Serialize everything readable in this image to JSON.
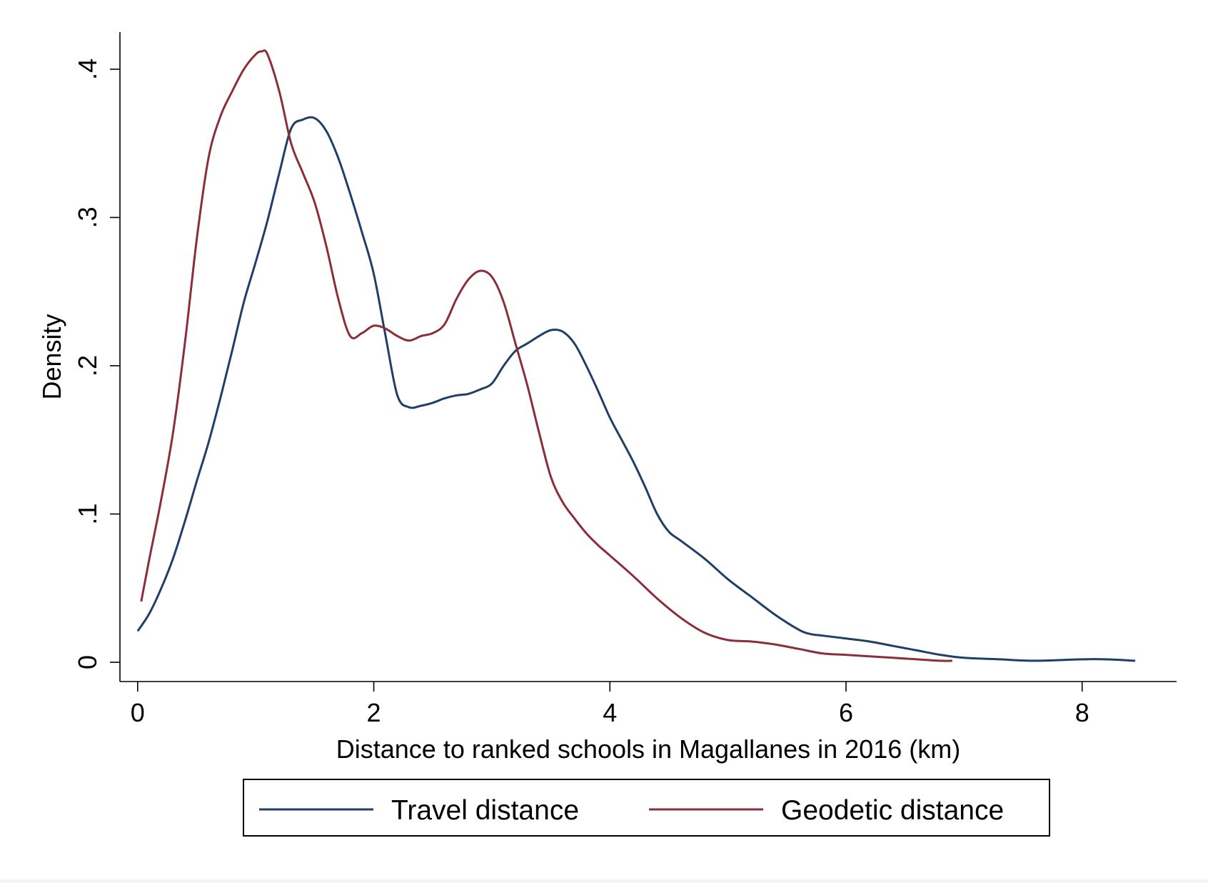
{
  "chart_data": {
    "type": "line",
    "title": "",
    "xlabel": "Distance to ranked schools in Magallanes in 2016 (km)",
    "ylabel": "Density",
    "xlim": [
      -0.15,
      8.8
    ],
    "ylim": [
      -0.013,
      0.425
    ],
    "x_ticks": [
      0,
      2,
      4,
      6,
      8
    ],
    "x_tick_labels": [
      "0",
      "2",
      "4",
      "6",
      "8"
    ],
    "y_ticks": [
      0,
      0.1,
      0.2,
      0.3,
      0.4
    ],
    "y_tick_labels": [
      "0",
      ".1",
      ".2",
      ".3",
      ".4"
    ],
    "grid": false,
    "legend_position": "bottom",
    "series": [
      {
        "name": "Travel distance",
        "color": "#1f3f66",
        "x": [
          0.0,
          0.1,
          0.2,
          0.3,
          0.4,
          0.5,
          0.6,
          0.7,
          0.8,
          0.9,
          1.0,
          1.1,
          1.2,
          1.3,
          1.4,
          1.5,
          1.6,
          1.7,
          1.8,
          1.9,
          2.0,
          2.1,
          2.2,
          2.3,
          2.4,
          2.5,
          2.6,
          2.7,
          2.8,
          2.9,
          3.0,
          3.1,
          3.2,
          3.3,
          3.4,
          3.5,
          3.6,
          3.7,
          3.8,
          3.9,
          4.0,
          4.1,
          4.2,
          4.3,
          4.4,
          4.5,
          4.6,
          4.8,
          5.0,
          5.2,
          5.4,
          5.6,
          5.7,
          5.8,
          6.0,
          6.2,
          6.4,
          6.6,
          6.8,
          7.0,
          7.3,
          7.6,
          8.0,
          8.2,
          8.45
        ],
        "y": [
          0.021,
          0.033,
          0.05,
          0.07,
          0.095,
          0.122,
          0.148,
          0.178,
          0.21,
          0.243,
          0.27,
          0.298,
          0.33,
          0.36,
          0.366,
          0.367,
          0.358,
          0.34,
          0.316,
          0.29,
          0.262,
          0.22,
          0.18,
          0.172,
          0.173,
          0.175,
          0.178,
          0.18,
          0.181,
          0.184,
          0.188,
          0.2,
          0.21,
          0.215,
          0.22,
          0.224,
          0.223,
          0.215,
          0.2,
          0.183,
          0.165,
          0.15,
          0.135,
          0.118,
          0.1,
          0.088,
          0.082,
          0.07,
          0.056,
          0.044,
          0.032,
          0.022,
          0.019,
          0.018,
          0.016,
          0.014,
          0.011,
          0.008,
          0.005,
          0.003,
          0.002,
          0.001,
          0.002,
          0.002,
          0.001
        ]
      },
      {
        "name": "Geodetic distance",
        "color": "#8c2d3a",
        "x": [
          0.03,
          0.1,
          0.2,
          0.3,
          0.4,
          0.5,
          0.6,
          0.7,
          0.8,
          0.9,
          1.0,
          1.05,
          1.1,
          1.2,
          1.3,
          1.4,
          1.5,
          1.6,
          1.7,
          1.8,
          1.9,
          2.0,
          2.1,
          2.2,
          2.3,
          2.4,
          2.5,
          2.6,
          2.7,
          2.8,
          2.9,
          3.0,
          3.1,
          3.2,
          3.3,
          3.4,
          3.5,
          3.6,
          3.7,
          3.8,
          3.9,
          4.0,
          4.2,
          4.4,
          4.6,
          4.8,
          5.0,
          5.2,
          5.4,
          5.6,
          5.8,
          6.0,
          6.2,
          6.4,
          6.6,
          6.8,
          6.9
        ],
        "y": [
          0.041,
          0.07,
          0.11,
          0.155,
          0.215,
          0.285,
          0.34,
          0.368,
          0.385,
          0.4,
          0.41,
          0.412,
          0.41,
          0.385,
          0.35,
          0.33,
          0.31,
          0.28,
          0.245,
          0.22,
          0.222,
          0.227,
          0.225,
          0.22,
          0.217,
          0.22,
          0.222,
          0.228,
          0.245,
          0.258,
          0.264,
          0.26,
          0.243,
          0.215,
          0.187,
          0.155,
          0.125,
          0.108,
          0.097,
          0.087,
          0.079,
          0.072,
          0.058,
          0.043,
          0.03,
          0.02,
          0.015,
          0.014,
          0.012,
          0.009,
          0.006,
          0.005,
          0.004,
          0.003,
          0.002,
          0.001,
          0.001
        ]
      }
    ]
  }
}
